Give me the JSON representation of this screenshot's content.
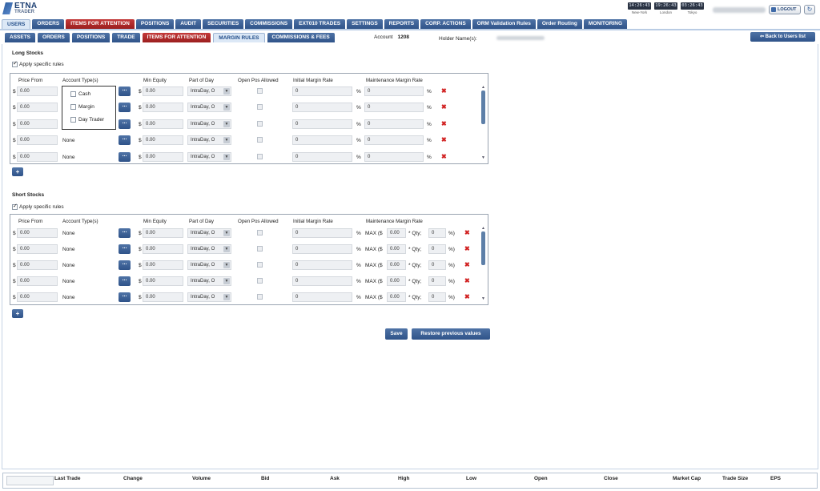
{
  "logo": {
    "line1": "ETNA",
    "line2": "TRADER"
  },
  "clocks": [
    {
      "time": "14:26:43",
      "city": "New-York"
    },
    {
      "time": "19:26:43",
      "city": "London"
    },
    {
      "time": "03:26:43",
      "city": "Tokyo"
    }
  ],
  "header": {
    "logout_label": "LOGOUT",
    "refresh_icon": "↻"
  },
  "nav_main": [
    {
      "label": "USERS",
      "style": "active"
    },
    {
      "label": "ORDERS",
      "style": "blue"
    },
    {
      "label": "ITEMS FOR ATTENTION",
      "style": "red"
    },
    {
      "label": "POSITIONS",
      "style": "blue"
    },
    {
      "label": "AUDIT",
      "style": "blue"
    },
    {
      "label": "SECURITIES",
      "style": "blue"
    },
    {
      "label": "COMMISSIONS",
      "style": "blue"
    },
    {
      "label": "EXT010 TRADES",
      "style": "blue"
    },
    {
      "label": "SETTINGS",
      "style": "blue"
    },
    {
      "label": "REPORTS",
      "style": "blue"
    },
    {
      "label": "CORP. ACTIONS",
      "style": "blue"
    },
    {
      "label": "ORM Validation Rules",
      "style": "blue"
    },
    {
      "label": "Order Routing",
      "style": "blue"
    },
    {
      "label": "MONITORING",
      "style": "blue"
    }
  ],
  "nav_sub": [
    {
      "label": "ASSETS",
      "style": "blue"
    },
    {
      "label": "ORDERS",
      "style": "blue"
    },
    {
      "label": "POSITIONS",
      "style": "blue"
    },
    {
      "label": "TRADE",
      "style": "blue"
    },
    {
      "label": "ITEMS FOR ATTENTION",
      "style": "red"
    },
    {
      "label": "MARGIN RULES",
      "style": "active"
    },
    {
      "label": "COMMISSIONS & FEES",
      "style": "blue"
    }
  ],
  "account": {
    "label": "Account",
    "value": "1208",
    "holder_label": "Holder Name(s):"
  },
  "back_button": "⇦ Back to Users list",
  "long": {
    "title": "Long Stocks",
    "apply_label": "Apply specific rules",
    "headers": {
      "price_from": "Price From",
      "account_types": "Account Type(s)",
      "min_equity": "Min Equity",
      "part_of_day": "Part of Day",
      "open_pos": "Open Pos Allowed",
      "initial": "Initial Margin Rate",
      "maintenance": "Maintenance Margin Rate"
    },
    "account_options": [
      "Cash",
      "Margin",
      "Day Trader"
    ],
    "rows": [
      {
        "price": "0.00",
        "acct": "",
        "min_equity": "0.00",
        "part": "IntraDay, O",
        "initial": "0",
        "maint": "0"
      },
      {
        "price": "0.00",
        "acct": "",
        "min_equity": "0.00",
        "part": "IntraDay, O",
        "initial": "0",
        "maint": "0"
      },
      {
        "price": "0.00",
        "acct": "",
        "min_equity": "0.00",
        "part": "IntraDay, O",
        "initial": "0",
        "maint": "0"
      },
      {
        "price": "0.00",
        "acct": "None",
        "min_equity": "0.00",
        "part": "IntraDay, O",
        "initial": "0",
        "maint": "0"
      },
      {
        "price": "0.00",
        "acct": "None",
        "min_equity": "0.00",
        "part": "IntraDay, O",
        "initial": "0",
        "maint": "0"
      }
    ]
  },
  "short": {
    "title": "Short Stocks",
    "apply_label": "Apply specific rules",
    "headers": {
      "price_from": "Price From",
      "account_types": "Account Type(s)",
      "min_equity": "Min Equity",
      "part_of_day": "Part of Day",
      "open_pos": "Open Pos Allowed",
      "initial": "Initial Margin Rate",
      "maintenance": "Maintenance Margin Rate"
    },
    "rows": [
      {
        "price": "0.00",
        "acct": "None",
        "min_equity": "0.00",
        "part": "IntraDay, O",
        "initial": "0",
        "max_amt": "0.00",
        "qty": "0"
      },
      {
        "price": "0.00",
        "acct": "None",
        "min_equity": "0.00",
        "part": "IntraDay, O",
        "initial": "0",
        "max_amt": "0.00",
        "qty": "0"
      },
      {
        "price": "0.00",
        "acct": "None",
        "min_equity": "0.00",
        "part": "IntraDay, O",
        "initial": "0",
        "max_amt": "0.00",
        "qty": "0"
      },
      {
        "price": "0.00",
        "acct": "None",
        "min_equity": "0.00",
        "part": "IntraDay, O",
        "initial": "0",
        "max_amt": "0.00",
        "qty": "0"
      },
      {
        "price": "0.00",
        "acct": "None",
        "min_equity": "0.00",
        "part": "IntraDay, O",
        "initial": "0",
        "max_amt": "0.00",
        "qty": "0"
      }
    ]
  },
  "symbols": {
    "dollar": "$",
    "percent": "%",
    "dots": "...",
    "delete": "✖",
    "plus": "+",
    "dropdown": "▼",
    "max_open": "MAX ($",
    "qty_mid": "* Qty;",
    "close_pct": "%)",
    "scroll_up": "▲",
    "scroll_down": "▼"
  },
  "actions": {
    "save": "Save",
    "restore": "Restore previous values"
  },
  "quote_headers": [
    "Last Trade",
    "Change",
    "Volume",
    "Bid",
    "Ask",
    "High",
    "Low",
    "Open",
    "Close",
    "Market Cap",
    "Trade Size",
    "EPS"
  ],
  "colors": {
    "nav_blue": "#2f5389",
    "nav_red": "#9b1e1e",
    "delete_red": "#d12222"
  }
}
